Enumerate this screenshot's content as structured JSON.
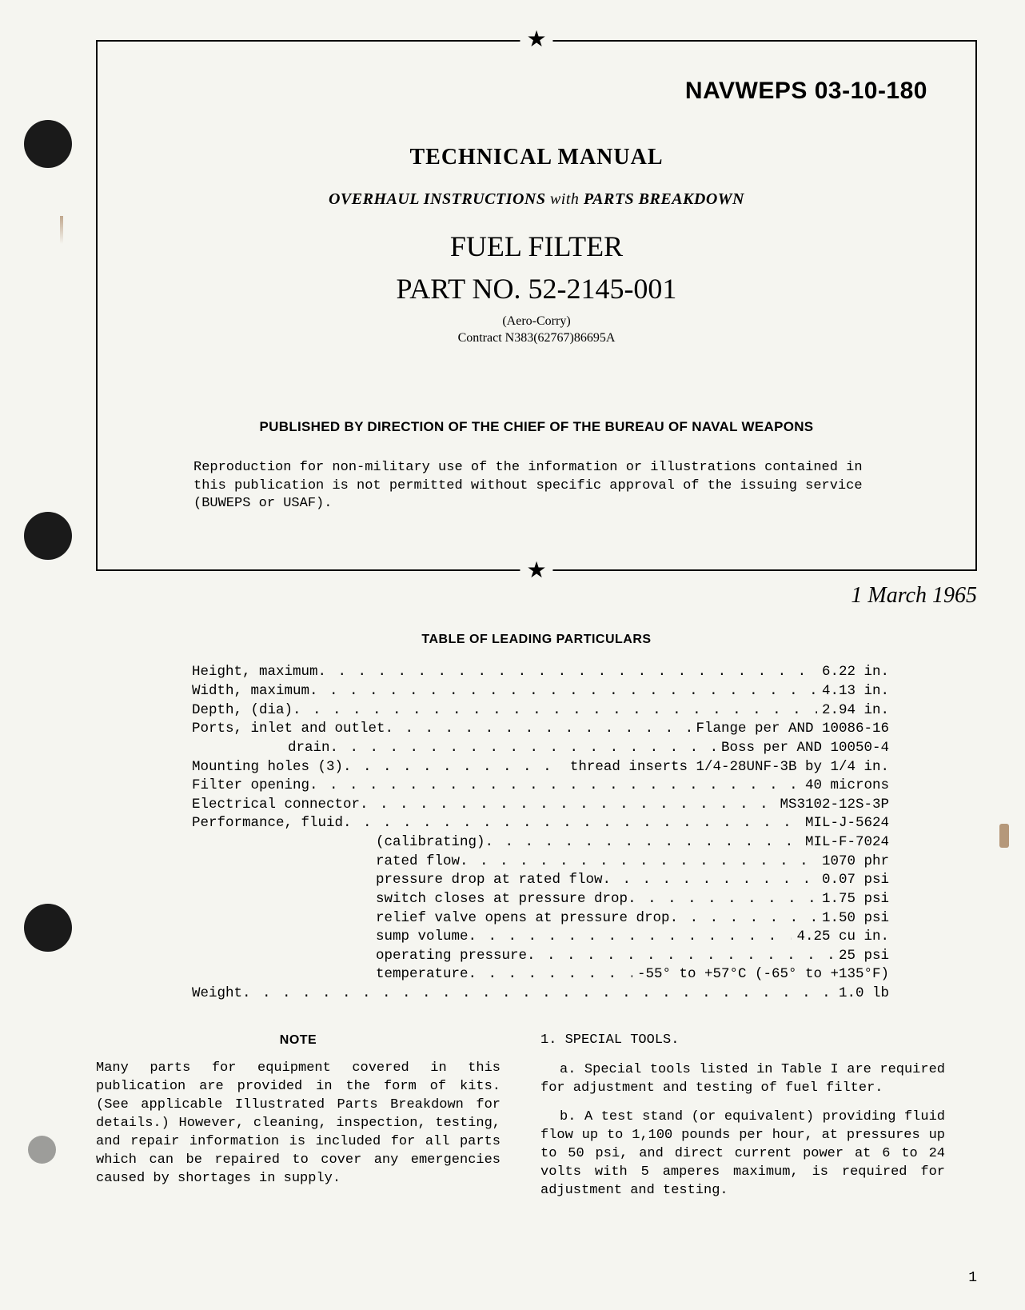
{
  "punch_holes": [
    1,
    2,
    3,
    4
  ],
  "document": {
    "id": "NAVWEPS 03-10-180",
    "title": "TECHNICAL MANUAL",
    "subtitle_overhaul": "OVERHAUL INSTRUCTIONS",
    "subtitle_with": " with ",
    "subtitle_parts": "PARTS BREAKDOWN",
    "item_name": "FUEL FILTER",
    "part_label": "PART NO. ",
    "part_number": "52-2145-001",
    "manufacturer": "(Aero-Corry)",
    "contract": "Contract N383(62767)86695A",
    "publisher": "PUBLISHED BY DIRECTION OF THE CHIEF OF THE BUREAU OF NAVAL WEAPONS",
    "reproduction_note": "Reproduction for non-military use of the information or illustrations contained in this publication is not permitted without specific approval of the issuing service (BUWEPS or USAF).",
    "date": "1 March 1965"
  },
  "table": {
    "title": "TABLE OF LEADING PARTICULARS",
    "rows": [
      {
        "label": "Height, maximum",
        "value": "6.22 in.",
        "indent": 0
      },
      {
        "label": "Width, maximum",
        "value": "4.13 in.",
        "indent": 0
      },
      {
        "label": "Depth, (dia)",
        "value": "2.94 in.",
        "indent": 0
      },
      {
        "label": "Ports, inlet and outlet",
        "value": "Flange per AND 10086-16",
        "indent": 0
      },
      {
        "label": "drain",
        "value": "Boss per AND 10050-4",
        "indent": 2
      },
      {
        "label": "Mounting holes (3)",
        "value": "thread inserts 1/4-28UNF-3B by 1/4 in.",
        "indent": 0
      },
      {
        "label": "Filter opening",
        "value": "40 microns",
        "indent": 0
      },
      {
        "label": "Electrical connector",
        "value": "MS3102-12S-3P",
        "indent": 0
      },
      {
        "label": "Performance, fluid",
        "value": "MIL-J-5624",
        "indent": 0
      },
      {
        "label": "(calibrating)",
        "value": "MIL-F-7024",
        "indent": 1
      },
      {
        "label": "rated flow",
        "value": "1070 phr",
        "indent": 1
      },
      {
        "label": "pressure drop at rated flow",
        "value": "0.07 psi",
        "indent": 1
      },
      {
        "label": "switch closes at pressure drop",
        "value": "1.75 psi",
        "indent": 1
      },
      {
        "label": "relief valve opens at pressure drop",
        "value": "1.50 psi",
        "indent": 1
      },
      {
        "label": "sump volume",
        "value": "4.25 cu in.",
        "indent": 1
      },
      {
        "label": "operating pressure",
        "value": "25 psi",
        "indent": 1
      },
      {
        "label": "temperature    ",
        "value": "-55° to +57°C (-65° to +135°F)",
        "indent": 1
      },
      {
        "label": "Weight",
        "value": "1.0 lb",
        "indent": 0
      }
    ]
  },
  "note": {
    "heading": "NOTE",
    "text": "Many parts for equipment covered in this publication are provided in the form of kits. (See applicable Illustrated Parts Breakdown for details.) However, cleaning, inspection, testing, and repair information is included for all parts which can be repaired to cover any emergencies caused by shortages in supply."
  },
  "section": {
    "heading": "1. SPECIAL TOOLS.",
    "para_a": "a. Special tools listed in Table I are required for adjustment and testing of fuel filter.",
    "para_b": "b. A test stand (or equivalent) providing fluid flow up to 1,100 pounds per hour, at pressures up to 50 psi, and direct current power at 6 to 24 volts with 5 amperes maximum, is required for adjustment and testing."
  },
  "page_number": "1",
  "colors": {
    "background": "#f5f5f0",
    "text": "#000000",
    "hole": "#1a1a1a"
  }
}
